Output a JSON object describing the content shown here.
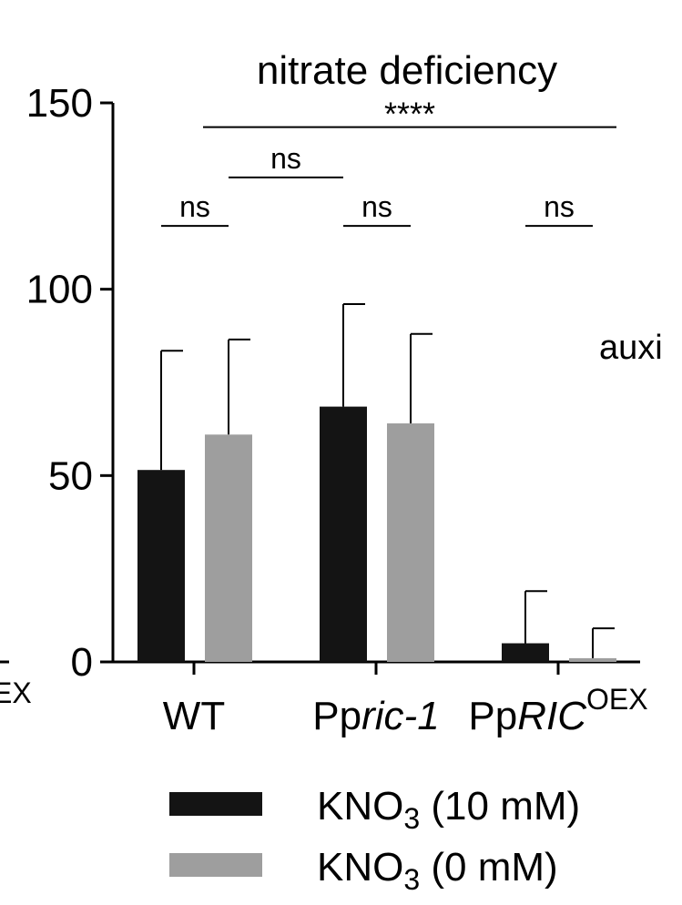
{
  "chart_data": {
    "type": "bar",
    "title": "nitrate deficiency",
    "ylim": [
      0,
      150
    ],
    "yticks": [
      "0",
      "50",
      "100",
      "150"
    ],
    "categories": [
      {
        "prefix": "WT",
        "italic": "",
        "sup": ""
      },
      {
        "prefix": "Pp",
        "italic": "ric-1",
        "sup": ""
      },
      {
        "prefix": "Pp",
        "italic": "RIC",
        "sup": "OEX"
      }
    ],
    "series": [
      {
        "name": "KNO3 (10 mM)",
        "legend_main": "KNO",
        "legend_sub": "3",
        "legend_rest": " (10 mM)",
        "color": "#141414",
        "values": [
          51.5,
          68.5,
          5
        ],
        "errors": [
          32,
          27.5,
          14
        ]
      },
      {
        "name": "KNO3 (0 mM)",
        "legend_main": "KNO",
        "legend_sub": "3",
        "legend_rest": " (0 mM)",
        "color": "#9e9e9e",
        "values": [
          61,
          64,
          1
        ],
        "errors": [
          25.5,
          24,
          8
        ]
      }
    ],
    "significance": [
      {
        "label": "ns",
        "from": [
          0,
          0
        ],
        "to": [
          0,
          1
        ],
        "level": 117
      },
      {
        "label": "ns",
        "from": [
          0,
          1
        ],
        "to": [
          1,
          0
        ],
        "level": 130
      },
      {
        "label": "ns",
        "from": [
          1,
          0
        ],
        "to": [
          1,
          1
        ],
        "level": 117
      },
      {
        "label": "ns",
        "from": [
          2,
          0
        ],
        "to": [
          2,
          1
        ],
        "level": 117
      },
      {
        "label": "****",
        "from": [
          0,
          1
        ],
        "to": [
          2,
          1
        ],
        "level": 143.5
      }
    ],
    "fragments": {
      "left_edge": "EX",
      "right_edge": "auxi"
    }
  }
}
